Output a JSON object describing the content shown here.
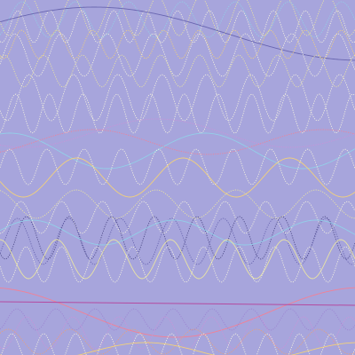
{
  "background_color": "#a7a5dc",
  "palette": [
    "#fffde0",
    "#f4ee9a",
    "#ffd86a",
    "#8fd6ea",
    "#ff7a8a",
    "#d08fd8",
    "#5e5aa8",
    "#3f3c7a",
    "#9a80d0",
    "#f3a06a"
  ],
  "waves": [
    {
      "color": "#f4ee9a",
      "amplitude": 22,
      "period": 48,
      "phase": 0.3,
      "baseline": 18,
      "dashed": true
    },
    {
      "color": "#fffde0",
      "amplitude": 18,
      "period": 36,
      "phase": 1.2,
      "baseline": 30,
      "dashed": true
    },
    {
      "color": "#8fd6ea",
      "amplitude": 20,
      "period": 60,
      "phase": 2.1,
      "baseline": 22,
      "dashed": true
    },
    {
      "color": "#5e5aa8",
      "amplitude": 30,
      "period": 600,
      "phase": 3.6,
      "baseline": 38,
      "dashed": false
    },
    {
      "color": "#ffd86a",
      "amplitude": 16,
      "period": 40,
      "phase": 0.9,
      "baseline": 50,
      "dashed": true
    },
    {
      "color": "#fffde0",
      "amplitude": 24,
      "period": 52,
      "phase": 2.7,
      "baseline": 62,
      "dashed": true
    },
    {
      "color": "#f4ee9a",
      "amplitude": 18,
      "period": 44,
      "phase": 4.0,
      "baseline": 80,
      "dashed": true
    },
    {
      "color": "#fffde0",
      "amplitude": 26,
      "period": 50,
      "phase": 0.6,
      "baseline": 110,
      "dashed": true
    },
    {
      "color": "#fffde0",
      "amplitude": 22,
      "period": 38,
      "phase": 1.8,
      "baseline": 128,
      "dashed": true
    },
    {
      "color": "#d08fd8",
      "amplitude": 16,
      "period": 300,
      "phase": 1.0,
      "baseline": 150,
      "dashed": true
    },
    {
      "color": "#8fd6ea",
      "amplitude": 20,
      "period": 220,
      "phase": 4.4,
      "baseline": 170,
      "dashed": false
    },
    {
      "color": "#ff7a8a",
      "amplitude": 14,
      "period": 260,
      "phase": 2.2,
      "baseline": 160,
      "dashed": true
    },
    {
      "color": "#ffd86a",
      "amplitude": 22,
      "period": 120,
      "phase": 0.2,
      "baseline": 200,
      "dashed": false
    },
    {
      "color": "#fffde0",
      "amplitude": 20,
      "period": 42,
      "phase": 3.1,
      "baseline": 188,
      "dashed": true
    },
    {
      "color": "#f4ee9a",
      "amplitude": 16,
      "period": 90,
      "phase": 5.0,
      "baseline": 230,
      "dashed": true
    },
    {
      "color": "#fffde0",
      "amplitude": 18,
      "period": 46,
      "phase": 1.5,
      "baseline": 245,
      "dashed": true
    },
    {
      "color": "#3f3c7a",
      "amplitude": 24,
      "period": 48,
      "phase": 0.8,
      "baseline": 268,
      "dashed": true
    },
    {
      "color": "#5e5aa8",
      "amplitude": 26,
      "period": 58,
      "phase": 2.6,
      "baseline": 272,
      "dashed": true
    },
    {
      "color": "#8fd6ea",
      "amplitude": 14,
      "period": 160,
      "phase": 3.3,
      "baseline": 262,
      "dashed": false
    },
    {
      "color": "#f4ee9a",
      "amplitude": 22,
      "period": 64,
      "phase": 4.7,
      "baseline": 292,
      "dashed": false
    },
    {
      "color": "#fffde0",
      "amplitude": 20,
      "period": 40,
      "phase": 0.1,
      "baseline": 298,
      "dashed": true
    },
    {
      "color": "#ff7a8a",
      "amplitude": 28,
      "period": 420,
      "phase": 4.9,
      "baseline": 352,
      "dashed": false
    },
    {
      "color": "#9a80d0",
      "amplitude": 12,
      "period": 44,
      "phase": 2.0,
      "baseline": 360,
      "dashed": true
    },
    {
      "color": "#d08fd8",
      "amplitude": 18,
      "period": 52,
      "phase": 1.1,
      "baseline": 375,
      "dashed": true
    },
    {
      "color": "#f3a06a",
      "amplitude": 14,
      "period": 70,
      "phase": 3.9,
      "baseline": 385,
      "dashed": true
    },
    {
      "color": "#fffde0",
      "amplitude": 16,
      "period": 36,
      "phase": 2.4,
      "baseline": 392,
      "dashed": true
    },
    {
      "color": "#ffd86a",
      "amplitude": 10,
      "period": 240,
      "phase": 0.4,
      "baseline": 396,
      "dashed": false
    }
  ],
  "horizontal_lines": [
    {
      "color": "#b44aa0",
      "y_start": 340,
      "y_end": 344
    }
  ]
}
